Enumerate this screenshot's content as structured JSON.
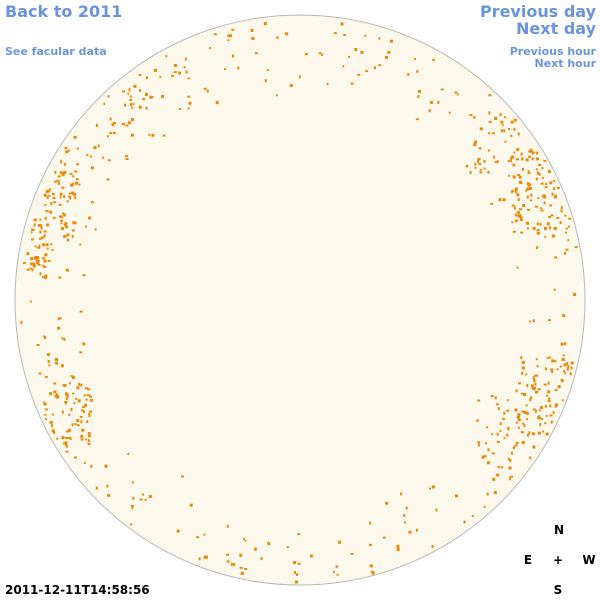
{
  "header": {
    "back": "Back to 2011",
    "facular": "See facular data",
    "previous_day": "Previous day",
    "next_day": "Next day",
    "previous_hour": "Previous hour",
    "next_hour": "Next hour"
  },
  "compass": {
    "north": "N",
    "east": "E",
    "center": "+",
    "west": "W",
    "south": "S"
  },
  "timestamp": "2011-12-11T14:58:56"
}
